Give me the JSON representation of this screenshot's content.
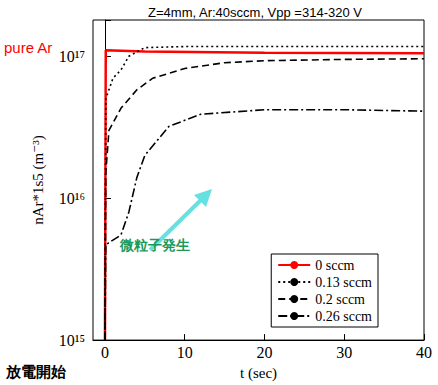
{
  "chart_data": {
    "type": "line",
    "title": "Z=4mm, Ar:40sccm, Vpp =314-320 V",
    "x_label": "t (sec)",
    "y_label": "nAr*1s5 (m⁻³)",
    "log": "y",
    "grid": false,
    "legend": "lower right",
    "xlim": [
      -1.5,
      40
    ],
    "xticks": [
      0,
      10,
      20,
      30,
      40
    ],
    "ylim": [
      1000000000000000.0,
      1.8e+17
    ],
    "yticks": [
      {
        "value": 1000000000000000.0,
        "label": "10¹⁵"
      },
      {
        "value": 1e+16,
        "label": "10¹⁶"
      },
      {
        "value": 1e+17,
        "label": "10¹⁷"
      }
    ],
    "annotations": [
      {
        "text": "pure Ar",
        "color": "#ff0000"
      },
      {
        "text": "微粒子発生",
        "color": "#1a9a5a"
      },
      {
        "text": "放電開始",
        "color": "#000000"
      }
    ],
    "series": [
      {
        "name": "0 sccm",
        "color": "#ff0000",
        "line_style": "solid",
        "x": [
          0,
          0.1,
          5,
          20,
          40
        ],
        "values": [
          1000000000000000.0,
          1.1e+17,
          1.08e+17,
          1.06e+17,
          1.05e+17
        ]
      },
      {
        "name": "0.13 sccm",
        "color": "#000000",
        "line_style": "dotted",
        "x": [
          0,
          0.1,
          1,
          2,
          3,
          5,
          10,
          20,
          40
        ],
        "values": [
          1000000000000000.0,
          5e+16,
          7e+16,
          8e+16,
          1e+17,
          1.15e+17,
          1.17e+17,
          1.17e+17,
          1.17e+17
        ]
      },
      {
        "name": "0.2 sccm",
        "color": "#000000",
        "line_style": "dashed",
        "x": [
          0,
          0.1,
          0.5,
          2,
          4,
          6,
          10,
          15,
          20,
          30,
          40
        ],
        "values": [
          1000000000000000.0,
          1.5e+16,
          3e+16,
          4.3e+16,
          5.8e+16,
          7e+16,
          8.2e+16,
          9e+16,
          9.3e+16,
          9.5e+16,
          9.6e+16
        ]
      },
      {
        "name": "0.26 sccm",
        "color": "#000000",
        "line_style": "dashdot",
        "x": [
          0,
          0.1,
          2,
          3,
          4,
          5,
          8,
          12,
          20,
          30,
          40
        ],
        "values": [
          1000000000000000.0,
          4700000000000000.0,
          5500000000000000.0,
          8000000000000000.0,
          1.4e+16,
          2e+16,
          3.2e+16,
          3.9e+16,
          4.2e+16,
          4.2e+16,
          4.1e+16
        ]
      }
    ]
  }
}
